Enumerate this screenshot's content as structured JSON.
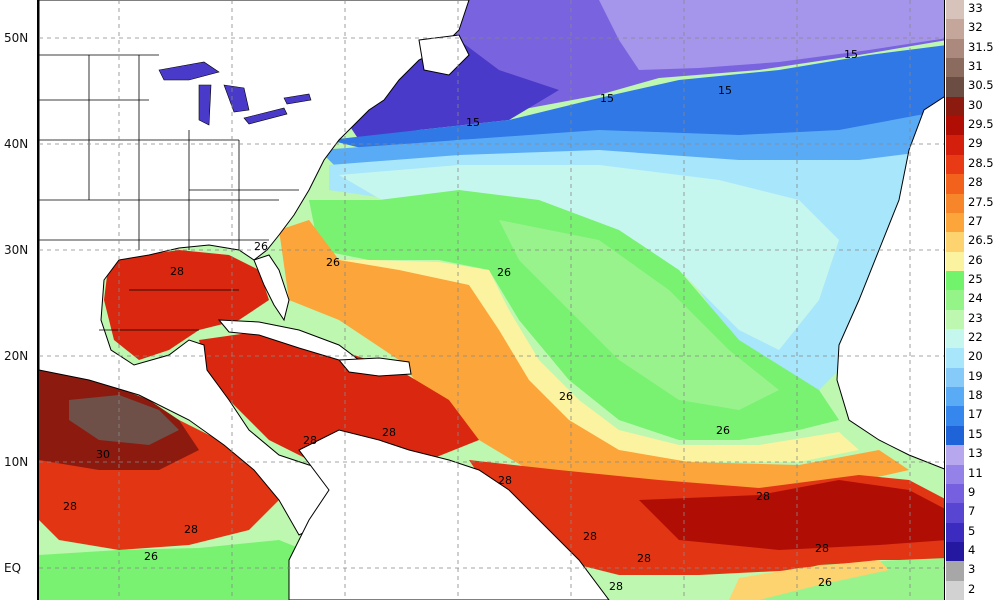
{
  "lat_labels": [
    "50N",
    "40N",
    "30N",
    "20N",
    "10N",
    "EQ"
  ],
  "legend": [
    {
      "label": "33",
      "color": "#d8c3bb"
    },
    {
      "label": "32",
      "color": "#c4a79a"
    },
    {
      "label": "31.5",
      "color": "#ab8a7d"
    },
    {
      "label": "31",
      "color": "#8c6b5f"
    },
    {
      "label": "30.5",
      "color": "#6b4d44"
    },
    {
      "label": "30",
      "color": "#8c1a0f"
    },
    {
      "label": "29.5",
      "color": "#b00d05"
    },
    {
      "label": "29",
      "color": "#d31f0c"
    },
    {
      "label": "28.5",
      "color": "#e83a14"
    },
    {
      "label": "28",
      "color": "#f2621d"
    },
    {
      "label": "27.5",
      "color": "#f7852a"
    },
    {
      "label": "27",
      "color": "#fba53a"
    },
    {
      "label": "26.5",
      "color": "#fdd370"
    },
    {
      "label": "26",
      "color": "#fbf39f"
    },
    {
      "label": "25",
      "color": "#71f36c"
    },
    {
      "label": "24",
      "color": "#95f488"
    },
    {
      "label": "23",
      "color": "#bdf7b0"
    },
    {
      "label": "22",
      "color": "#c6f7ef"
    },
    {
      "label": "20",
      "color": "#a8e6fb"
    },
    {
      "label": "19",
      "color": "#86cafa"
    },
    {
      "label": "18",
      "color": "#5aabf6"
    },
    {
      "label": "17",
      "color": "#3587ee"
    },
    {
      "label": "15",
      "color": "#1f63d8"
    },
    {
      "label": "13",
      "color": "#b7a7ef"
    },
    {
      "label": "11",
      "color": "#9582e8"
    },
    {
      "label": "9",
      "color": "#7660df"
    },
    {
      "label": "7",
      "color": "#5845d2"
    },
    {
      "label": "5",
      "color": "#3b2bbf"
    },
    {
      "label": "4",
      "color": "#23189f"
    },
    {
      "label": "3",
      "color": "#a7a7a7"
    },
    {
      "label": "2",
      "color": "#d2d2d2"
    }
  ],
  "contour_labels": [
    {
      "text": "15"
    },
    {
      "text": "15"
    },
    {
      "text": "15"
    },
    {
      "text": "15"
    },
    {
      "text": "26"
    },
    {
      "text": "26"
    },
    {
      "text": "26"
    },
    {
      "text": "26"
    },
    {
      "text": "26"
    },
    {
      "text": "26"
    },
    {
      "text": "26"
    },
    {
      "text": "28"
    },
    {
      "text": "28"
    },
    {
      "text": "28"
    },
    {
      "text": "28"
    },
    {
      "text": "28"
    },
    {
      "text": "28"
    },
    {
      "text": "28"
    },
    {
      "text": "28"
    },
    {
      "text": "28"
    },
    {
      "text": "28"
    },
    {
      "text": "28"
    },
    {
      "text": "30"
    }
  ]
}
